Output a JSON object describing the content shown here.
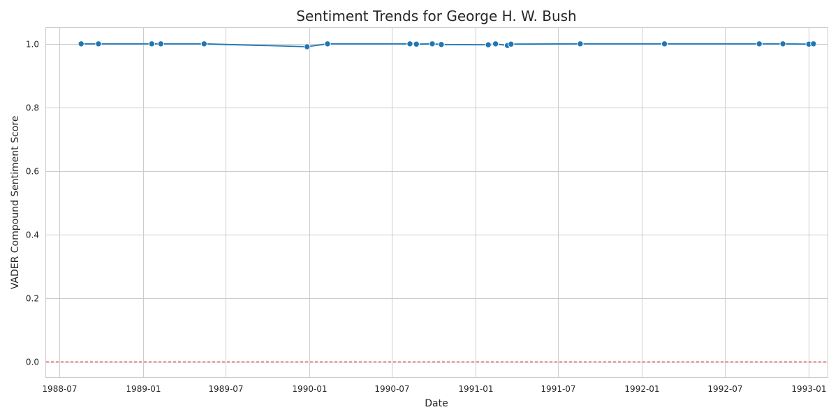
{
  "chart_data": {
    "type": "line",
    "title": "Sentiment Trends for George H. W. Bush",
    "xlabel": "Date",
    "ylabel": "VADER Compound Sentiment Score",
    "x_ticks": [
      "1988-07",
      "1989-01",
      "1989-07",
      "1990-01",
      "1990-07",
      "1991-01",
      "1991-07",
      "1992-01",
      "1992-07",
      "1993-01"
    ],
    "y_ticks": [
      "0.0",
      "0.2",
      "0.4",
      "0.6",
      "0.8",
      "1.0"
    ],
    "xlim": [
      "1988-06-02",
      "1993-02-12"
    ],
    "ylim": [
      -0.05,
      1.05
    ],
    "grid": true,
    "reference_line": {
      "y": 0.0,
      "color": "#d62728",
      "style": "dashed"
    },
    "series": [
      {
        "color": "#1f77b4",
        "x": [
          "1988-08-18",
          "1988-09-25",
          "1989-01-20",
          "1989-02-09",
          "1989-05-15",
          "1989-12-27",
          "1990-02-10",
          "1990-08-10",
          "1990-08-24",
          "1990-09-28",
          "1990-10-18",
          "1991-01-29",
          "1991-02-14",
          "1991-03-12",
          "1991-03-20",
          "1991-08-19",
          "1992-02-20",
          "1992-09-15",
          "1992-11-06",
          "1993-01-02",
          "1993-01-12"
        ],
        "values": [
          1.0,
          1.0,
          1.0,
          1.0,
          1.0,
          0.991,
          1.0,
          1.0,
          0.999,
          1.0,
          0.998,
          0.997,
          1.0,
          0.995,
          0.999,
          1.0,
          1.0,
          1.0,
          1.0,
          0.999,
          1.0
        ]
      }
    ]
  }
}
